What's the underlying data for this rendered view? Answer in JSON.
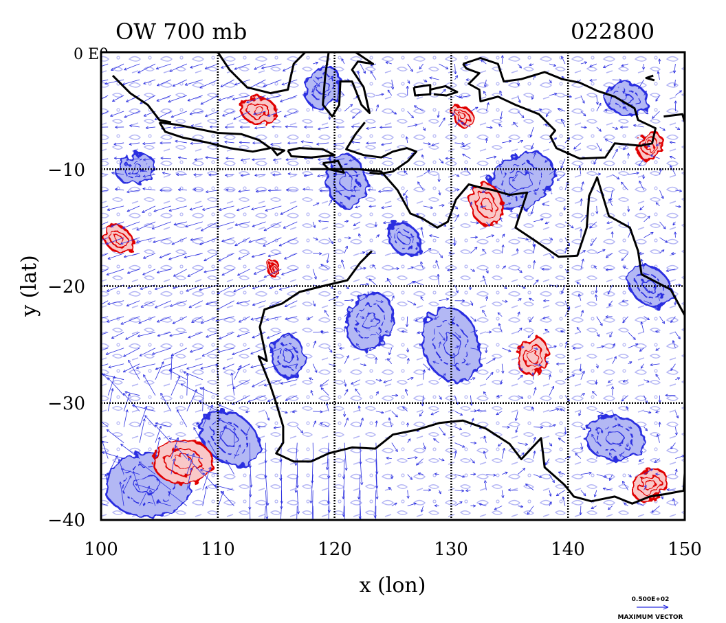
{
  "title_left": "OW 700 mb",
  "title_right": "022800",
  "corner_label": "0 E0",
  "xlabel": "x (lon)",
  "ylabel": "y (lat)",
  "x_ticks": [
    "100",
    "110",
    "120",
    "130",
    "140",
    "150"
  ],
  "y_ticks": [
    "−10",
    "−20",
    "−30",
    "−40"
  ],
  "legend": {
    "value": "0.500E+02",
    "caption": "MAXIMUM VECTOR"
  },
  "colors": {
    "positive_fill": "#f9c8c8",
    "positive_line": "#e00000",
    "negative_fill": "#b3b8f4",
    "negative_line": "#2a2ee0",
    "vector": "#2a2ee0",
    "coast": "#000000",
    "grid": "#000000"
  },
  "chart_data": {
    "type": "map",
    "field": "OW",
    "level": "700 mb",
    "time": "022800",
    "xlim": [
      100,
      150
    ],
    "ylim": [
      -40,
      0
    ],
    "grid": true,
    "grid_lon": [
      110,
      120,
      130,
      140
    ],
    "grid_lat": [
      -10,
      -20,
      -30
    ],
    "max_vector": 50,
    "positive_regions": [
      {
        "lon": 107,
        "lat": -35,
        "r": 2.2
      },
      {
        "lon": 101.5,
        "lat": -16,
        "r": 1.2
      },
      {
        "lon": 133,
        "lat": -13,
        "r": 1.6
      },
      {
        "lon": 137,
        "lat": -26,
        "r": 1.4
      },
      {
        "lon": 147,
        "lat": -37,
        "r": 1.4
      },
      {
        "lon": 113.5,
        "lat": -5,
        "r": 1.3
      },
      {
        "lon": 131,
        "lat": -5.5,
        "r": 0.9
      },
      {
        "lon": 114.8,
        "lat": -18.5,
        "r": 0.6
      },
      {
        "lon": 147,
        "lat": -8,
        "r": 1.1
      }
    ],
    "negative_regions": [
      {
        "lon": 104,
        "lat": -37,
        "r": 3.2
      },
      {
        "lon": 111,
        "lat": -33,
        "r": 2.4
      },
      {
        "lon": 130,
        "lat": -25,
        "r": 2.8
      },
      {
        "lon": 123,
        "lat": -23,
        "r": 2.2
      },
      {
        "lon": 136,
        "lat": -11,
        "r": 2.6
      },
      {
        "lon": 144,
        "lat": -33,
        "r": 2.2
      },
      {
        "lon": 147,
        "lat": -20,
        "r": 1.8
      },
      {
        "lon": 121,
        "lat": -11,
        "r": 2.0
      },
      {
        "lon": 119,
        "lat": -3,
        "r": 1.6
      },
      {
        "lon": 103,
        "lat": -10,
        "r": 1.4
      },
      {
        "lon": 145,
        "lat": -4,
        "r": 1.6
      },
      {
        "lon": 126,
        "lat": -16,
        "r": 1.4
      },
      {
        "lon": 116,
        "lat": -26,
        "r": 1.6
      }
    ],
    "coastlines": [
      [
        [
          122.6,
          -6
        ],
        [
          121.8,
          -7
        ],
        [
          121,
          -8.3
        ],
        [
          122.5,
          -8.8
        ],
        [
          124,
          -9
        ],
        [
          125,
          -8.5
        ],
        [
          126.2,
          -8.2
        ],
        [
          127,
          -8.5
        ],
        [
          126.3,
          -9.3
        ],
        [
          125,
          -10.2
        ],
        [
          123.8,
          -10.4
        ],
        [
          123,
          -10.3
        ]
      ],
      [
        [
          118,
          -10
        ],
        [
          119.8,
          -10
        ],
        [
          122,
          -10
        ],
        [
          124,
          -10.2
        ],
        [
          125.4,
          -11.8
        ],
        [
          126.5,
          -13.8
        ],
        [
          127.5,
          -14.2
        ],
        [
          128.8,
          -15
        ],
        [
          129.7,
          -14.5
        ],
        [
          130.4,
          -12.6
        ],
        [
          131.5,
          -11.3
        ],
        [
          132.6,
          -11.6
        ],
        [
          133.6,
          -11.8
        ],
        [
          135,
          -12.2
        ],
        [
          136.5,
          -12
        ],
        [
          136,
          -13.5
        ],
        [
          135.5,
          -15
        ],
        [
          137,
          -16
        ],
        [
          139.2,
          -17.5
        ],
        [
          140.8,
          -17.4
        ],
        [
          141.6,
          -15
        ],
        [
          141.8,
          -12.3
        ],
        [
          142.5,
          -10.7
        ],
        [
          143.5,
          -14
        ],
        [
          145.3,
          -15
        ],
        [
          146,
          -17
        ],
        [
          146.3,
          -19
        ],
        [
          148.8,
          -20.3
        ],
        [
          150,
          -22.5
        ]
      ],
      [
        [
          123.2,
          -17
        ],
        [
          122.2,
          -18
        ],
        [
          121.1,
          -19.5
        ],
        [
          119,
          -20
        ],
        [
          117,
          -20.5
        ],
        [
          115.5,
          -21.5
        ],
        [
          114,
          -22
        ],
        [
          113.6,
          -23.5
        ],
        [
          114.2,
          -26.4
        ],
        [
          113.5,
          -26
        ],
        [
          114.5,
          -28.5
        ],
        [
          115,
          -30
        ],
        [
          115.6,
          -32
        ],
        [
          115.6,
          -33.4
        ],
        [
          115,
          -34.3
        ],
        [
          116.5,
          -35
        ],
        [
          118,
          -35
        ],
        [
          119.5,
          -34.3
        ],
        [
          121.5,
          -33.8
        ],
        [
          123.5,
          -33.9
        ],
        [
          125,
          -32.7
        ],
        [
          127,
          -32.3
        ],
        [
          129,
          -31.7
        ],
        [
          131,
          -31.5
        ],
        [
          133,
          -32.2
        ],
        [
          135,
          -33.5
        ],
        [
          136,
          -34.8
        ],
        [
          137.7,
          -33
        ],
        [
          138,
          -35.5
        ],
        [
          139.7,
          -37
        ],
        [
          140.5,
          -38
        ],
        [
          142,
          -38.4
        ],
        [
          144,
          -38
        ],
        [
          145.5,
          -38.6
        ],
        [
          147,
          -38
        ],
        [
          148.3,
          -37.8
        ],
        [
          149.9,
          -37.5
        ],
        [
          150,
          -36
        ]
      ],
      [
        [
          144.5,
          -40
        ],
        [
          145,
          -40.8
        ],
        [
          147,
          -40.8
        ],
        [
          148.2,
          -40.5
        ],
        [
          148,
          -40
        ]
      ],
      [
        [
          101,
          -2
        ],
        [
          102.5,
          -3.5
        ],
        [
          104,
          -4.5
        ],
        [
          105,
          -5.8
        ],
        [
          106,
          -6
        ]
      ],
      [
        [
          105,
          -6
        ],
        [
          106.5,
          -6.2
        ],
        [
          108,
          -6.5
        ],
        [
          110,
          -6.9
        ],
        [
          112,
          -7
        ],
        [
          113.5,
          -7.5
        ],
        [
          114.5,
          -8.2
        ],
        [
          113,
          -8.5
        ],
        [
          111,
          -8.2
        ],
        [
          109,
          -7.7
        ],
        [
          107,
          -7.3
        ],
        [
          105.5,
          -6.8
        ],
        [
          105,
          -6
        ]
      ],
      [
        [
          114.6,
          -8.2
        ],
        [
          115.7,
          -8.4
        ],
        [
          115.1,
          -8.8
        ],
        [
          114.6,
          -8.2
        ]
      ],
      [
        [
          116,
          -8.4
        ],
        [
          117,
          -8.2
        ],
        [
          119,
          -8.3
        ],
        [
          120,
          -8.8
        ],
        [
          118,
          -9
        ],
        [
          116.3,
          -8.9
        ],
        [
          116,
          -8.4
        ]
      ],
      [
        [
          119,
          -9.5
        ],
        [
          120.3,
          -9.3
        ],
        [
          120.8,
          -10.3
        ],
        [
          119.5,
          -10
        ],
        [
          119,
          -9.5
        ]
      ],
      [
        [
          110,
          0
        ],
        [
          111,
          -1.5
        ],
        [
          112.5,
          -3
        ],
        [
          114.5,
          -3.5
        ],
        [
          116,
          -3.2
        ],
        [
          116.5,
          -1
        ],
        [
          117.5,
          0
        ]
      ],
      [
        [
          119.5,
          0
        ],
        [
          119.2,
          -2
        ],
        [
          119,
          -4.5
        ],
        [
          119.8,
          -5.5
        ],
        [
          120.4,
          -4.5
        ],
        [
          120.5,
          -2.5
        ],
        [
          121.5,
          -2.5
        ],
        [
          122.3,
          -4.5
        ],
        [
          123,
          -5.2
        ],
        [
          122.5,
          -3
        ],
        [
          121.5,
          -1.5
        ],
        [
          122,
          -0.8
        ],
        [
          123.3,
          -1
        ],
        [
          121.8,
          0
        ]
      ],
      [
        [
          126.8,
          -3
        ],
        [
          128.2,
          -2.8
        ],
        [
          128.2,
          -3.6
        ],
        [
          126.9,
          -3.7
        ],
        [
          126.8,
          -3
        ]
      ],
      [
        [
          128.2,
          -3.2
        ],
        [
          129.5,
          -2.9
        ],
        [
          130.5,
          -3.4
        ],
        [
          129.6,
          -3.7
        ],
        [
          128.5,
          -3.6
        ]
      ],
      [
        [
          131,
          -1
        ],
        [
          132.5,
          -0.5
        ],
        [
          134,
          -1
        ],
        [
          134.5,
          -2.5
        ],
        [
          136,
          -2.3
        ],
        [
          138,
          -1.7
        ],
        [
          139.5,
          -2.3
        ],
        [
          141,
          -2.6
        ],
        [
          142.5,
          -3.3
        ],
        [
          144,
          -3.8
        ],
        [
          145.7,
          -4.8
        ],
        [
          146,
          -5.8
        ],
        [
          147.5,
          -6.5
        ],
        [
          147.2,
          -7.8
        ],
        [
          146.2,
          -8
        ],
        [
          145.2,
          -7.9
        ],
        [
          144,
          -7.8
        ],
        [
          143.2,
          -9
        ],
        [
          141,
          -9.1
        ],
        [
          139,
          -8.2
        ],
        [
          138.5,
          -7.2
        ],
        [
          138.9,
          -6.7
        ],
        [
          137.5,
          -5.3
        ],
        [
          135.5,
          -4.5
        ],
        [
          134,
          -3.8
        ],
        [
          132.5,
          -4.2
        ],
        [
          132.4,
          -3.2
        ],
        [
          131.5,
          -2.7
        ],
        [
          132.4,
          -1.8
        ],
        [
          131.3,
          -1.4
        ],
        [
          131,
          -1
        ]
      ],
      [
        [
          148.2,
          -5.5
        ],
        [
          149.8,
          -5.3
        ],
        [
          150,
          -6
        ]
      ],
      [
        [
          147.3,
          -2
        ],
        [
          146.7,
          -2.2
        ],
        [
          147.4,
          -2.4
        ]
      ]
    ]
  }
}
